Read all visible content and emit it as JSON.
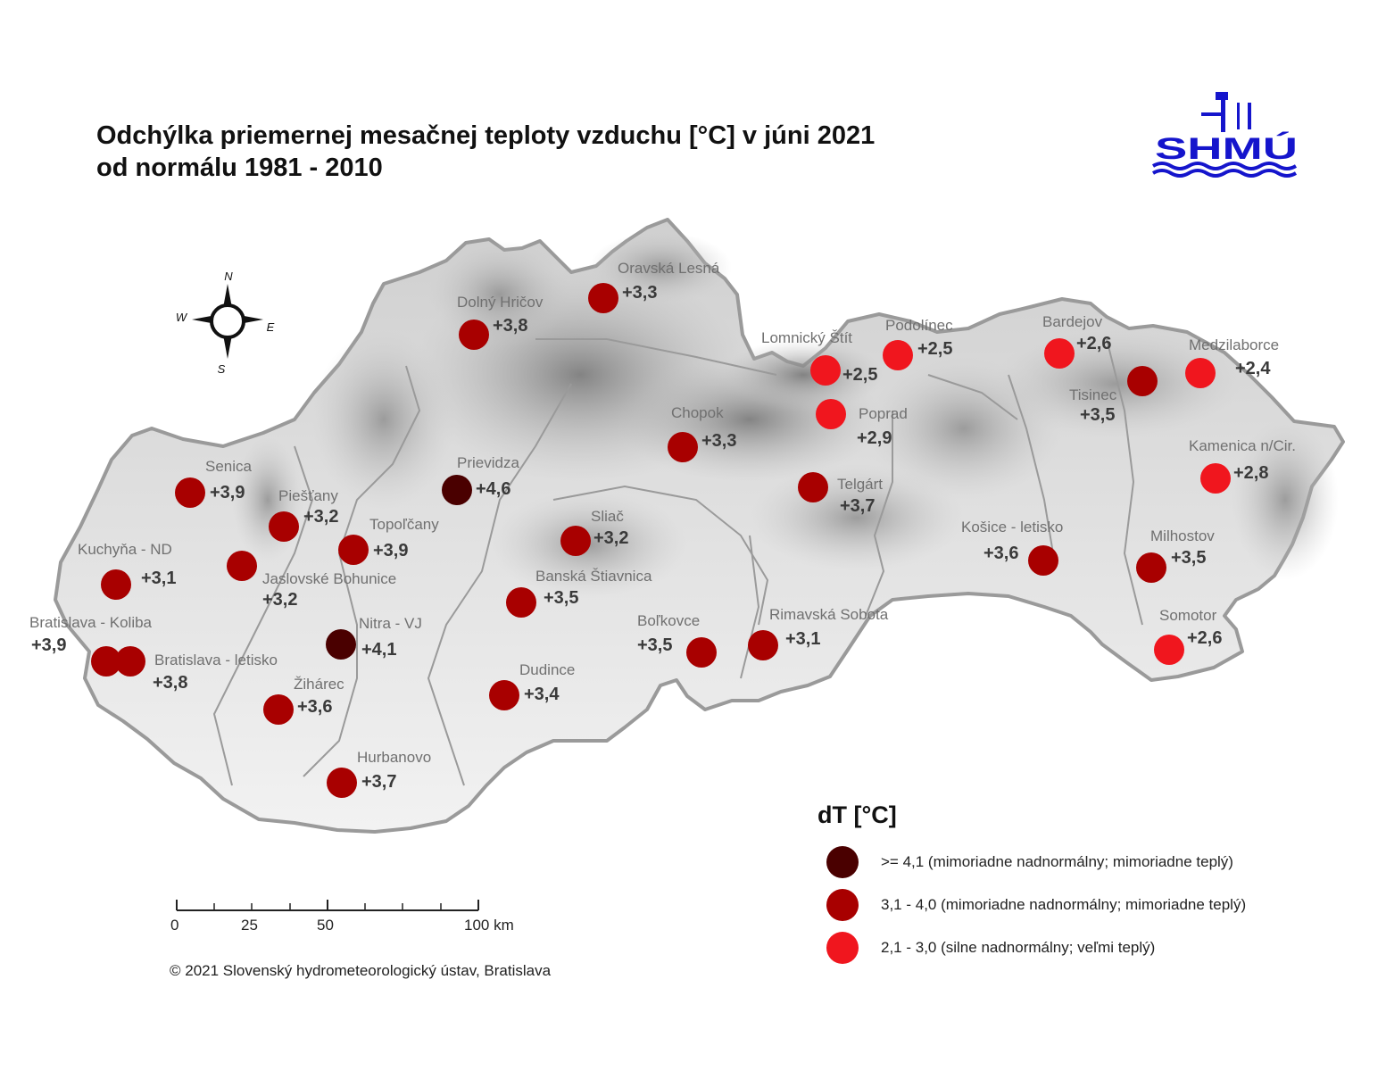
{
  "title": {
    "line1": "Odchýlka priemernej mesačnej teploty vzduchu [°C] v júni 2021",
    "line2": "od normálu 1981 - 2010"
  },
  "logo": {
    "text": "SHMÚ",
    "color": "#1515cc"
  },
  "compass": {
    "n": "N",
    "s": "S",
    "e": "E",
    "w": "W"
  },
  "colors": {
    "class_extreme_dark": "#4a0000",
    "class_high": "#a80000",
    "class_warm": "#f0161e",
    "map_fill": "#d8d8d8",
    "border": "#9a9a9a"
  },
  "stations": [
    {
      "name": "Oravská Lesná",
      "value": "+3,3",
      "class": "high"
    },
    {
      "name": "Dolný Hričov",
      "value": "+3,8",
      "class": "high"
    },
    {
      "name": "Lomnický Štít",
      "value": "+2,5",
      "class": "warm"
    },
    {
      "name": "Podolínec",
      "value": "+2,5",
      "class": "warm"
    },
    {
      "name": "Bardejov",
      "value": "+2,6",
      "class": "warm"
    },
    {
      "name": "Medzilaborce",
      "value": "+2,4",
      "class": "warm"
    },
    {
      "name": "Tisinec",
      "value": "+3,5",
      "class": "high"
    },
    {
      "name": "Poprad",
      "value": "+2,9",
      "class": "warm"
    },
    {
      "name": "Chopok",
      "value": "+3,3",
      "class": "high"
    },
    {
      "name": "Kamenica n/Cir.",
      "value": "+2,8",
      "class": "warm"
    },
    {
      "name": "Senica",
      "value": "+3,9",
      "class": "high"
    },
    {
      "name": "Prievidza",
      "value": "+4,6",
      "class": "extreme"
    },
    {
      "name": "Telgárt",
      "value": "+3,7",
      "class": "high"
    },
    {
      "name": "Piešťany",
      "value": "+3,2",
      "class": "high"
    },
    {
      "name": "Topoľčany",
      "value": "+3,9",
      "class": "high"
    },
    {
      "name": "Sliač",
      "value": "+3,2",
      "class": "high"
    },
    {
      "name": "Kuchyňa - ND",
      "value": "+3,1",
      "class": "high"
    },
    {
      "name": "Jaslovské Bohunice",
      "value": "+3,2",
      "class": "high"
    },
    {
      "name": "Košice - letisko",
      "value": "+3,6",
      "class": "high"
    },
    {
      "name": "Milhostov",
      "value": "+3,5",
      "class": "high"
    },
    {
      "name": "Banská Štiavnica",
      "value": "+3,5",
      "class": "high"
    },
    {
      "name": "Bratislava - Koliba",
      "value": "+3,9",
      "class": "high"
    },
    {
      "name": "Nitra - VJ",
      "value": "+4,1",
      "class": "extreme"
    },
    {
      "name": "Boľkovce",
      "value": "+3,5",
      "class": "high"
    },
    {
      "name": "Rimavská Sobota",
      "value": "+3,1",
      "class": "high"
    },
    {
      "name": "Somotor",
      "value": "+2,6",
      "class": "warm"
    },
    {
      "name": "Bratislava - letisko",
      "value": "+3,8",
      "class": "high"
    },
    {
      "name": "Žihárec",
      "value": "+3,6",
      "class": "high"
    },
    {
      "name": "Dudince",
      "value": "+3,4",
      "class": "high"
    },
    {
      "name": "Hurbanovo",
      "value": "+3,7",
      "class": "high"
    }
  ],
  "legend": {
    "title": "dT [°C]",
    "items": [
      {
        "label": ">= 4,1 (mimoriadne nadnormálny; mimoriadne teplý)",
        "color": "#4a0000"
      },
      {
        "label": "3,1 - 4,0 (mimoriadne nadnormálny; mimoriadne teplý)",
        "color": "#a80000"
      },
      {
        "label": "2,1 - 3,0 (silne nadnormálny; veľmi teplý)",
        "color": "#f0161e"
      }
    ]
  },
  "scalebar": {
    "labels": [
      "0",
      "25",
      "50",
      "100 km"
    ]
  },
  "copyright": "© 2021 Slovenský hydrometeorologický ústav, Bratislava"
}
